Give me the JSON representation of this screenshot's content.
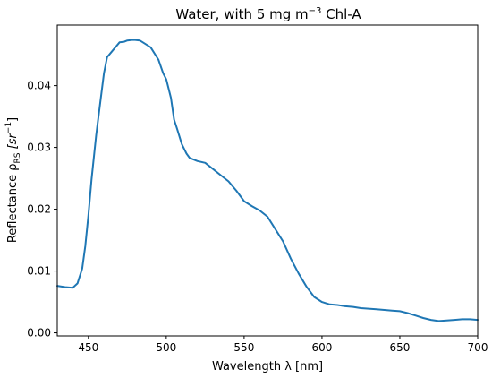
{
  "chart_data": {
    "type": "line",
    "title": {
      "main": "Water, with 5 mg m",
      "superscript": "−3",
      "suffix": " Chl-A"
    },
    "xlabel": "Wavelength λ [nm]",
    "ylabel": {
      "prefix": "Reflectance ρ",
      "subscript": "RS",
      "unit_open": " [sr",
      "unit_superscript": "−1",
      "unit_close": "]"
    },
    "xlim": [
      430,
      700
    ],
    "ylim": [
      -0.0005,
      0.0498
    ],
    "xticks": [
      {
        "value": 450,
        "label": "450"
      },
      {
        "value": 500,
        "label": "500"
      },
      {
        "value": 550,
        "label": "550"
      },
      {
        "value": 600,
        "label": "600"
      },
      {
        "value": 650,
        "label": "650"
      },
      {
        "value": 700,
        "label": "700"
      }
    ],
    "yticks": [
      {
        "value": 0.0,
        "label": "0.00"
      },
      {
        "value": 0.01,
        "label": "0.01"
      },
      {
        "value": 0.02,
        "label": "0.02"
      },
      {
        "value": 0.03,
        "label": "0.03"
      },
      {
        "value": 0.04,
        "label": "0.04"
      }
    ],
    "grid": false,
    "series": [
      {
        "color": "#1f77b4",
        "x": [
          430,
          435,
          440,
          443,
          446,
          448,
          450,
          452,
          455,
          458,
          460,
          462,
          465,
          470,
          473,
          475,
          478,
          480,
          483,
          485,
          490,
          495,
          498,
          500,
          503,
          505,
          507,
          510,
          513,
          515,
          520,
          525,
          530,
          535,
          540,
          545,
          550,
          555,
          560,
          565,
          570,
          575,
          580,
          585,
          590,
          595,
          600,
          605,
          610,
          615,
          620,
          625,
          630,
          635,
          640,
          645,
          650,
          655,
          660,
          665,
          670,
          675,
          680,
          685,
          690,
          695,
          700
        ],
        "y": [
          0.0076,
          0.0074,
          0.0073,
          0.008,
          0.0104,
          0.014,
          0.019,
          0.0248,
          0.032,
          0.038,
          0.042,
          0.0446,
          0.0455,
          0.047,
          0.0471,
          0.0473,
          0.0474,
          0.0474,
          0.0473,
          0.047,
          0.0462,
          0.0442,
          0.042,
          0.041,
          0.038,
          0.0345,
          0.033,
          0.0305,
          0.029,
          0.0283,
          0.0278,
          0.0275,
          0.0265,
          0.0255,
          0.0245,
          0.023,
          0.0213,
          0.0205,
          0.0198,
          0.0188,
          0.0168,
          0.0148,
          0.012,
          0.0096,
          0.0075,
          0.0058,
          0.005,
          0.0046,
          0.0045,
          0.0043,
          0.0042,
          0.004,
          0.0039,
          0.0038,
          0.0037,
          0.0036,
          0.0035,
          0.0032,
          0.0028,
          0.0024,
          0.0021,
          0.0019,
          0.002,
          0.0021,
          0.0022,
          0.0022,
          0.0021
        ]
      }
    ]
  }
}
